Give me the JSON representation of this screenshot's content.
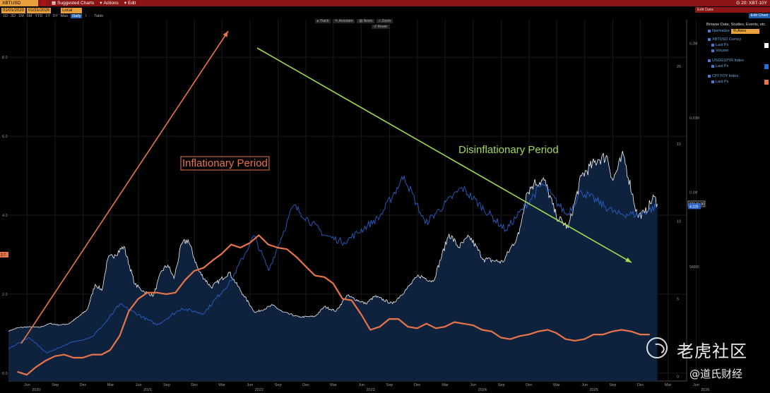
{
  "window": {
    "ticker": "XBTUSD Curncy",
    "menu_suggested": "Suggested Charts",
    "menu_actions": "Actions",
    "menu_edit": "Edit",
    "right_title": "G 20: XBT-10Y"
  },
  "toolbar": {
    "start_date": "01/01/2020",
    "end_date": "01/31/2026",
    "currency": "Local CCY",
    "right_field": "Edit Data",
    "edit_chart": "Edit Chart"
  },
  "ranges": [
    "1D",
    "3D",
    "1M",
    "6M",
    "YTD",
    "1Y",
    "5Y",
    "Max"
  ],
  "frequency": "Daily",
  "table_label": "Table",
  "chart_tools": {
    "track": "Track",
    "annotate": "Annotate",
    "news": "News",
    "zoom": "Zoom",
    "reset": "Reset"
  },
  "panel": {
    "title": "Browse Data, Studies, Events, etc.",
    "normalize_label": "Normalize",
    "normalize_value": "% Axes",
    "items": [
      {
        "name": "XBTUSD Curncy",
        "sub": [
          "Last Px",
          "Volume"
        ],
        "color": "#ffffff"
      },
      {
        "name": "USGG10YR Index",
        "sub": [
          "Last Px"
        ],
        "color": "#2a6fd6"
      },
      {
        "name": "CPI YOY Index",
        "sub": [
          "Last Px"
        ],
        "color": "#e8744a"
      }
    ]
  },
  "watermark": {
    "brand": "老虎社区",
    "author": "@道氏财经"
  },
  "chart_data": {
    "type": "line",
    "x_range": [
      "2020-04-01",
      "2026-05-01"
    ],
    "x_tick_labels": [
      "Jun",
      "Sep",
      "Dec",
      "Mar",
      "Jun",
      "Sep",
      "Dec",
      "Mar",
      "Jun",
      "Sep",
      "Dec",
      "Mar",
      "Jun",
      "Sep",
      "Dec",
      "Mar",
      "Jun",
      "Sep",
      "Dec",
      "Mar",
      "Jun",
      "Sep",
      "Dec",
      "Mar",
      "Jun"
    ],
    "year_labels": [
      "2020",
      "2021",
      "2022",
      "2023",
      "2024",
      "2025",
      "2026"
    ],
    "left_axis": {
      "ticks": [
        "0.0",
        "2.0",
        "4.0",
        "6.0",
        "8.0"
      ],
      "range": [
        -0.2,
        8.95
      ]
    },
    "right_axis_1": {
      "ticks": [
        "0",
        "5",
        "10",
        "15",
        "20"
      ],
      "range": [
        -0.3,
        23
      ]
    },
    "right_axis_2": {
      "ticks": [
        "50000",
        "0.1M",
        "0.15M",
        "0.2M"
      ],
      "range": [
        -27000,
        216000
      ]
    },
    "last_value_labels": {
      "btc": "92149.00",
      "cpi": "2.7",
      "us10y": "4.226"
    },
    "series": [
      {
        "name": "XBTUSD Curncy",
        "axis": "right_axis_2",
        "points": [
          [
            "2020-04-01",
            6600
          ],
          [
            "2020-05-01",
            8800
          ],
          [
            "2020-06-01",
            9400
          ],
          [
            "2020-07-15",
            9200
          ],
          [
            "2020-08-15",
            11700
          ],
          [
            "2020-09-15",
            10700
          ],
          [
            "2020-10-15",
            11500
          ],
          [
            "2020-11-15",
            16000
          ],
          [
            "2020-12-15",
            21000
          ],
          [
            "2021-01-10",
            38000
          ],
          [
            "2021-02-01",
            34000
          ],
          [
            "2021-02-20",
            55000
          ],
          [
            "2021-03-15",
            58000
          ],
          [
            "2021-04-14",
            63500
          ],
          [
            "2021-05-20",
            38000
          ],
          [
            "2021-06-20",
            33000
          ],
          [
            "2021-07-20",
            30500
          ],
          [
            "2021-08-15",
            47000
          ],
          [
            "2021-09-05",
            51000
          ],
          [
            "2021-09-25",
            42000
          ],
          [
            "2021-10-20",
            65000
          ],
          [
            "2021-11-10",
            68000
          ],
          [
            "2021-12-15",
            47000
          ],
          [
            "2022-01-25",
            36000
          ],
          [
            "2022-03-25",
            46000
          ],
          [
            "2022-05-10",
            31000
          ],
          [
            "2022-06-18",
            19000
          ],
          [
            "2022-08-15",
            24000
          ],
          [
            "2022-09-15",
            19500
          ],
          [
            "2022-11-09",
            16000
          ],
          [
            "2022-12-31",
            16500
          ],
          [
            "2023-01-31",
            23000
          ],
          [
            "2023-03-10",
            20000
          ],
          [
            "2023-04-14",
            30500
          ],
          [
            "2023-06-15",
            25000
          ],
          [
            "2023-07-15",
            30000
          ],
          [
            "2023-09-11",
            25000
          ],
          [
            "2023-10-25",
            34500
          ],
          [
            "2023-12-05",
            44000
          ],
          [
            "2024-01-22",
            40000
          ],
          [
            "2024-03-14",
            72000
          ],
          [
            "2024-04-15",
            63000
          ],
          [
            "2024-05-20",
            70000
          ],
          [
            "2024-07-05",
            55000
          ],
          [
            "2024-08-05",
            54000
          ],
          [
            "2024-09-06",
            53000
          ],
          [
            "2024-10-29",
            72000
          ],
          [
            "2024-11-22",
            99000
          ],
          [
            "2024-12-17",
            106000
          ],
          [
            "2025-01-20",
            108000
          ],
          [
            "2025-02-28",
            84000
          ],
          [
            "2025-04-08",
            76000
          ],
          [
            "2025-05-22",
            111000
          ],
          [
            "2025-07-14",
            122000
          ],
          [
            "2025-08-14",
            124000
          ],
          [
            "2025-09-01",
            108000
          ],
          [
            "2025-10-06",
            125000
          ],
          [
            "2025-11-21",
            84000
          ],
          [
            "2025-12-15",
            86000
          ],
          [
            "2026-01-14",
            97000
          ],
          [
            "2026-01-25",
            92149
          ]
        ]
      },
      {
        "name": "USGG10YR Index",
        "axis": "left_axis",
        "points": [
          [
            "2020-04-01",
            0.62
          ],
          [
            "2020-06-08",
            0.9
          ],
          [
            "2020-08-04",
            0.51
          ],
          [
            "2020-10-15",
            0.75
          ],
          [
            "2020-12-31",
            0.92
          ],
          [
            "2021-02-15",
            1.3
          ],
          [
            "2021-03-31",
            1.74
          ],
          [
            "2021-08-01",
            1.22
          ],
          [
            "2021-10-20",
            1.64
          ],
          [
            "2021-12-31",
            1.51
          ],
          [
            "2022-03-31",
            2.34
          ],
          [
            "2022-06-14",
            3.48
          ],
          [
            "2022-08-01",
            2.6
          ],
          [
            "2022-10-21",
            4.24
          ],
          [
            "2023-01-31",
            3.5
          ],
          [
            "2023-04-05",
            3.31
          ],
          [
            "2023-07-31",
            3.96
          ],
          [
            "2023-10-19",
            4.99
          ],
          [
            "2023-12-27",
            3.79
          ],
          [
            "2024-04-25",
            4.7
          ],
          [
            "2024-09-16",
            3.62
          ],
          [
            "2025-01-14",
            4.79
          ],
          [
            "2025-04-04",
            4.0
          ],
          [
            "2025-05-21",
            4.6
          ],
          [
            "2025-09-16",
            4.03
          ],
          [
            "2025-11-30",
            4.02
          ],
          [
            "2026-01-25",
            4.226
          ]
        ]
      },
      {
        "name": "CPI YOY Index",
        "axis": "right_axis_1",
        "points": [
          [
            "2020-04-30",
            0.3
          ],
          [
            "2020-05-31",
            0.1
          ],
          [
            "2020-06-30",
            0.6
          ],
          [
            "2020-07-31",
            1.0
          ],
          [
            "2020-08-31",
            1.3
          ],
          [
            "2020-09-30",
            1.4
          ],
          [
            "2020-10-31",
            1.2
          ],
          [
            "2020-11-30",
            1.2
          ],
          [
            "2020-12-31",
            1.4
          ],
          [
            "2021-01-31",
            1.4
          ],
          [
            "2021-02-28",
            1.7
          ],
          [
            "2021-03-31",
            2.6
          ],
          [
            "2021-04-30",
            4.2
          ],
          [
            "2021-05-31",
            5.0
          ],
          [
            "2021-06-30",
            5.4
          ],
          [
            "2021-07-31",
            5.4
          ],
          [
            "2021-08-31",
            5.3
          ],
          [
            "2021-09-30",
            5.4
          ],
          [
            "2021-10-31",
            6.2
          ],
          [
            "2021-11-30",
            6.8
          ],
          [
            "2021-12-31",
            7.0
          ],
          [
            "2022-01-31",
            7.5
          ],
          [
            "2022-02-28",
            7.9
          ],
          [
            "2022-03-31",
            8.5
          ],
          [
            "2022-04-30",
            8.3
          ],
          [
            "2022-05-31",
            8.6
          ],
          [
            "2022-06-30",
            9.1
          ],
          [
            "2022-07-31",
            8.5
          ],
          [
            "2022-08-31",
            8.3
          ],
          [
            "2022-09-30",
            8.2
          ],
          [
            "2022-10-31",
            7.7
          ],
          [
            "2022-11-30",
            7.1
          ],
          [
            "2022-12-31",
            6.5
          ],
          [
            "2023-01-31",
            6.4
          ],
          [
            "2023-02-28",
            6.0
          ],
          [
            "2023-03-31",
            5.0
          ],
          [
            "2023-04-30",
            4.9
          ],
          [
            "2023-05-31",
            4.0
          ],
          [
            "2023-06-30",
            3.0
          ],
          [
            "2023-07-31",
            3.2
          ],
          [
            "2023-08-31",
            3.7
          ],
          [
            "2023-09-30",
            3.7
          ],
          [
            "2023-10-31",
            3.2
          ],
          [
            "2023-11-30",
            3.1
          ],
          [
            "2023-12-31",
            3.4
          ],
          [
            "2024-01-31",
            3.1
          ],
          [
            "2024-02-29",
            3.2
          ],
          [
            "2024-03-31",
            3.5
          ],
          [
            "2024-04-30",
            3.4
          ],
          [
            "2024-05-31",
            3.3
          ],
          [
            "2024-06-30",
            3.0
          ],
          [
            "2024-07-31",
            2.9
          ],
          [
            "2024-08-31",
            2.5
          ],
          [
            "2024-09-30",
            2.4
          ],
          [
            "2024-10-31",
            2.6
          ],
          [
            "2024-11-30",
            2.7
          ],
          [
            "2024-12-31",
            2.9
          ],
          [
            "2025-01-31",
            3.0
          ],
          [
            "2025-02-28",
            2.8
          ],
          [
            "2025-03-31",
            2.4
          ],
          [
            "2025-04-30",
            2.3
          ],
          [
            "2025-05-31",
            2.4
          ],
          [
            "2025-06-30",
            2.7
          ],
          [
            "2025-07-31",
            2.7
          ],
          [
            "2025-08-31",
            2.9
          ],
          [
            "2025-09-30",
            3.0
          ],
          [
            "2025-10-31",
            2.9
          ],
          [
            "2025-11-30",
            2.7
          ],
          [
            "2025-12-31",
            2.7
          ]
        ]
      }
    ],
    "annotations": [
      {
        "text": "Inflationary Period",
        "color": "#e8744a"
      },
      {
        "text": "Disinflationary Period",
        "color": "#9fdc4e"
      }
    ]
  }
}
